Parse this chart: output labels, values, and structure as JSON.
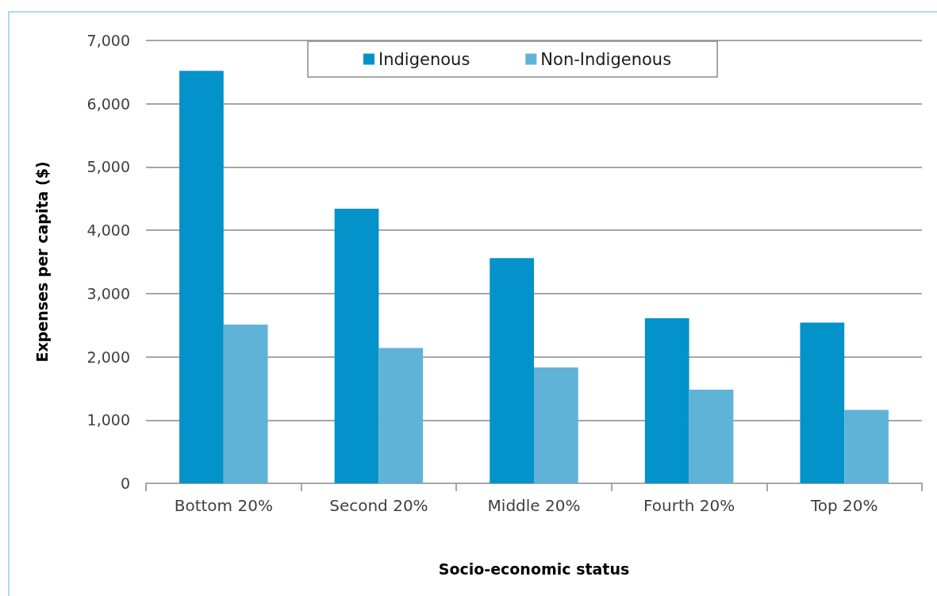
{
  "chart_data": {
    "type": "bar",
    "xlabel": "Socio-economic status",
    "ylabel": "Expenses per capita ($)",
    "categories": [
      "Bottom 20%",
      "Second 20%",
      "Middle 20%",
      "Fourth 20%",
      "Top 20%"
    ],
    "series": [
      {
        "name": "Indigenous",
        "color": "#0392c9",
        "values": [
          6520,
          4340,
          3560,
          2610,
          2540
        ]
      },
      {
        "name": "Non-Indigenous",
        "color": "#5fb3d7",
        "values": [
          2510,
          2140,
          1830,
          1480,
          1160
        ]
      }
    ],
    "ylim": [
      0,
      7000
    ],
    "yticks": [
      0,
      {
        "value": 1000,
        "label": "1,000"
      },
      {
        "value": 2000,
        "label": "2,000"
      },
      {
        "value": 3000,
        "label": "3,000"
      },
      {
        "value": 4000,
        "label": "4,000"
      },
      {
        "value": 5000,
        "label": "5,000"
      },
      {
        "value": 6000,
        "label": "6,000"
      },
      {
        "value": 7000,
        "label": "7,000"
      }
    ],
    "grid": "y",
    "legend": "top"
  }
}
